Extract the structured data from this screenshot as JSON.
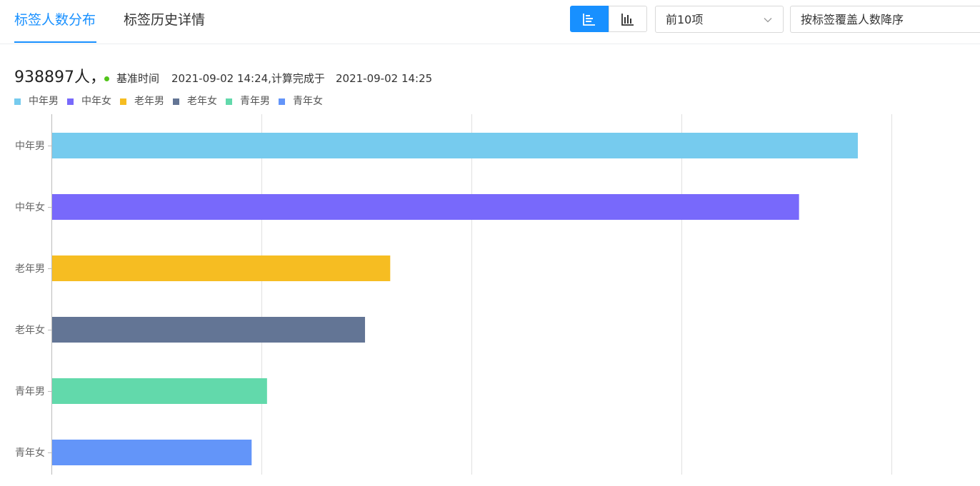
{
  "tabs": [
    {
      "label": "标签人数分布",
      "active": true
    },
    {
      "label": "标签历史详情",
      "active": false
    }
  ],
  "toolbar": {
    "horizontal_bar_icon": "horizontal-bar-chart-icon",
    "vertical_bar_icon": "vertical-bar-chart-icon",
    "top_select_value": "前10项",
    "sort_select_value": "按标签覆盖人数降序",
    "accent_color": "#1890ff"
  },
  "summary": {
    "total": "938897人，",
    "base_time_label": "基准时间",
    "base_time": "2021-09-02 14:24,计算完成于",
    "finished_time": "2021-09-02 14:25",
    "status_color": "#52c41a"
  },
  "chart_data": {
    "type": "bar",
    "orientation": "horizontal",
    "categories": [
      "中年男",
      "中年女",
      "老年男",
      "老年女",
      "青年男",
      "青年女"
    ],
    "values": [
      288000,
      267000,
      121000,
      112000,
      77000,
      71500
    ],
    "colors": [
      "#76cbee",
      "#7869fb",
      "#f6bd22",
      "#637595",
      "#62d9ab",
      "#6395f9"
    ],
    "legend": [
      "中年男",
      "中年女",
      "老年男",
      "老年女",
      "青年男",
      "青年女"
    ],
    "legend_position": "top-left",
    "xlim": [
      0,
      300000
    ],
    "grid": true,
    "xlabel": "",
    "ylabel": ""
  }
}
